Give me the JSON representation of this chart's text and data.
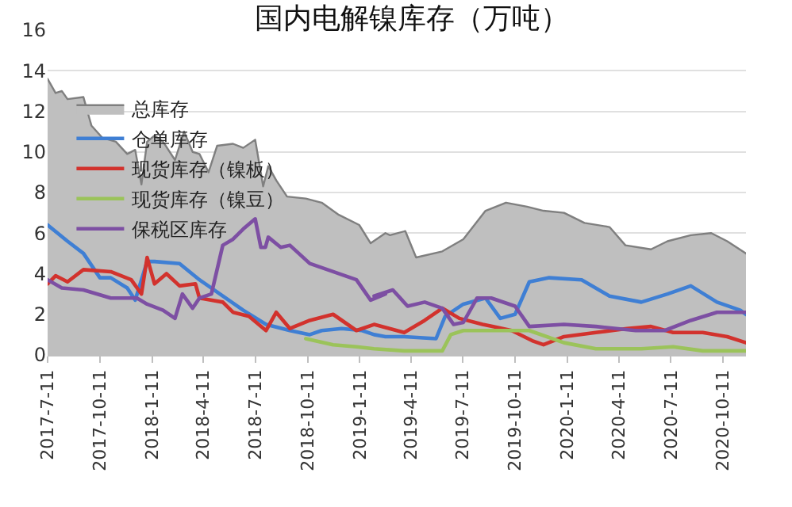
{
  "chart_data": {
    "type": "line",
    "title": "国内电解镍库存（万吨）",
    "xlim": [
      "2017-07-11",
      "2020-11-20"
    ],
    "xticks": [
      {
        "value": "2017-07-11",
        "label": "2017-7-11"
      },
      {
        "value": "2017-10-11",
        "label": "2017-10-11"
      },
      {
        "value": "2018-01-11",
        "label": "2018-1-11"
      },
      {
        "value": "2018-04-11",
        "label": "2018-4-11"
      },
      {
        "value": "2018-07-11",
        "label": "2018-7-11"
      },
      {
        "value": "2018-10-11",
        "label": "2018-10-11"
      },
      {
        "value": "2019-01-11",
        "label": "2019-1-11"
      },
      {
        "value": "2019-04-11",
        "label": "2019-4-11"
      },
      {
        "value": "2019-07-11",
        "label": "2019-7-11"
      },
      {
        "value": "2019-10-11",
        "label": "2019-10-11"
      },
      {
        "value": "2020-01-11",
        "label": "2020-1-11"
      },
      {
        "value": "2020-04-11",
        "label": "2020-4-11"
      },
      {
        "value": "2020-07-11",
        "label": "2020-7-11"
      },
      {
        "value": "2020-10-11",
        "label": "2020-10-11"
      }
    ],
    "ylim": [
      0,
      16
    ],
    "yticks": [
      0,
      2,
      4,
      6,
      8,
      10,
      12,
      14,
      16
    ],
    "grid": "y",
    "legend": "top left",
    "series": [
      {
        "name": "总库存",
        "type": "area",
        "color": "#bfbfbf",
        "x": [
          "2017-07-11",
          "2017-07-25",
          "2017-08-05",
          "2017-08-15",
          "2017-09-12",
          "2017-09-26",
          "2017-10-15",
          "2017-11-08",
          "2017-11-28",
          "2017-12-12",
          "2017-12-23",
          "2018-01-02",
          "2018-01-15",
          "2018-01-30",
          "2018-02-20",
          "2018-03-08",
          "2018-03-23",
          "2018-04-04",
          "2018-04-20",
          "2018-05-05",
          "2018-06-02",
          "2018-06-20",
          "2018-07-11",
          "2018-07-25",
          "2018-08-03",
          "2018-08-17",
          "2018-09-05",
          "2018-10-08",
          "2018-11-05",
          "2018-12-05",
          "2019-01-10",
          "2019-01-30",
          "2019-02-25",
          "2019-03-05",
          "2019-04-01",
          "2019-04-20",
          "2019-06-05",
          "2019-07-12",
          "2019-08-20",
          "2019-09-25",
          "2019-11-01",
          "2019-11-30",
          "2020-01-05",
          "2020-02-10",
          "2020-03-25",
          "2020-04-22",
          "2020-06-06",
          "2020-07-05",
          "2020-08-15",
          "2020-09-20",
          "2020-10-18",
          "2020-11-20"
        ],
        "values": [
          13.6,
          12.9,
          13.0,
          12.6,
          12.7,
          11.3,
          10.7,
          10.5,
          9.9,
          10.1,
          8.4,
          10.5,
          10.8,
          10.5,
          9.6,
          11.0,
          10.0,
          9.9,
          9.0,
          10.3,
          10.4,
          10.2,
          10.6,
          8.3,
          9.3,
          8.6,
          7.8,
          7.7,
          7.5,
          6.9,
          6.4,
          5.5,
          6.0,
          5.9,
          6.1,
          4.8,
          5.1,
          5.7,
          7.1,
          7.5,
          7.3,
          7.1,
          7.0,
          6.5,
          6.3,
          5.4,
          5.2,
          5.6,
          5.9,
          6.0,
          5.6,
          5.0
        ]
      },
      {
        "name": "仓单库存",
        "color": "#3f7fd4",
        "x": [
          "2017-07-11",
          "2017-08-15",
          "2017-09-12",
          "2017-10-11",
          "2017-10-30",
          "2017-11-28",
          "2017-12-12",
          "2018-01-02",
          "2018-01-15",
          "2018-02-28",
          "2018-04-04",
          "2018-05-15",
          "2018-06-20",
          "2018-07-30",
          "2018-09-10",
          "2018-10-15",
          "2018-11-05",
          "2018-12-10",
          "2019-01-15",
          "2019-02-05",
          "2019-02-25",
          "2019-03-30",
          "2019-05-25",
          "2019-06-10",
          "2019-07-12",
          "2019-08-20",
          "2019-09-15",
          "2019-10-11",
          "2019-11-05",
          "2019-12-10",
          "2020-02-05",
          "2020-03-25",
          "2020-05-20",
          "2020-07-05",
          "2020-08-15",
          "2020-09-30",
          "2020-11-10",
          "2020-11-20"
        ],
        "values": [
          6.4,
          5.6,
          5.0,
          3.8,
          3.8,
          3.3,
          2.7,
          4.6,
          4.6,
          4.5,
          3.7,
          2.9,
          2.2,
          1.5,
          1.2,
          1.0,
          1.2,
          1.3,
          1.2,
          1.0,
          0.9,
          0.9,
          0.8,
          1.9,
          2.5,
          2.8,
          1.8,
          2.0,
          3.6,
          3.8,
          3.7,
          2.9,
          2.6,
          3.0,
          3.4,
          2.6,
          2.2,
          2.0
        ]
      },
      {
        "name": "现货库存（镍板）",
        "color": "#d2322d",
        "x": [
          "2017-07-11",
          "2017-07-25",
          "2017-08-15",
          "2017-09-12",
          "2017-10-30",
          "2017-12-05",
          "2017-12-23",
          "2018-01-02",
          "2018-01-15",
          "2018-02-05",
          "2018-02-28",
          "2018-03-28",
          "2018-04-04",
          "2018-05-15",
          "2018-06-02",
          "2018-06-30",
          "2018-07-30",
          "2018-08-17",
          "2018-09-10",
          "2018-10-15",
          "2018-11-25",
          "2019-01-05",
          "2019-02-05",
          "2019-03-30",
          "2019-05-05",
          "2019-06-05",
          "2019-07-05",
          "2019-08-15",
          "2019-09-01",
          "2019-10-05",
          "2019-11-10",
          "2019-11-30",
          "2020-01-05",
          "2020-03-01",
          "2020-04-25",
          "2020-06-06",
          "2020-07-15",
          "2020-09-05",
          "2020-10-18",
          "2020-11-20"
        ],
        "values": [
          3.5,
          3.9,
          3.6,
          4.2,
          4.1,
          3.7,
          3.0,
          4.8,
          3.5,
          4.0,
          3.4,
          3.5,
          2.8,
          2.6,
          2.1,
          1.9,
          1.2,
          2.1,
          1.3,
          1.7,
          2.0,
          1.2,
          1.5,
          1.1,
          1.7,
          2.3,
          1.8,
          1.5,
          1.4,
          1.2,
          0.7,
          0.5,
          0.9,
          1.1,
          1.3,
          1.4,
          1.1,
          1.1,
          0.9,
          0.6
        ]
      },
      {
        "name": "现货库存（镍豆）",
        "color": "#9bc35a",
        "x": [
          "2018-10-08",
          "2018-11-25",
          "2019-01-05",
          "2019-02-05",
          "2019-03-30",
          "2019-06-05",
          "2019-06-20",
          "2019-07-12",
          "2019-09-25",
          "2019-11-05",
          "2020-01-05",
          "2020-03-01",
          "2020-05-20",
          "2020-07-15",
          "2020-09-05",
          "2020-11-20"
        ],
        "values": [
          0.8,
          0.5,
          0.4,
          0.3,
          0.2,
          0.2,
          1.0,
          1.2,
          1.2,
          1.2,
          0.6,
          0.3,
          0.3,
          0.4,
          0.2,
          0.2
        ]
      },
      {
        "name": "保税区库存",
        "color": "#7d4fa3",
        "x": [
          "2017-07-11",
          "2017-08-05",
          "2017-09-12",
          "2017-10-30",
          "2017-12-15",
          "2018-01-02",
          "2018-01-30",
          "2018-02-20",
          "2018-03-05",
          "2018-03-23",
          "2018-04-04",
          "2018-04-25",
          "2018-05-15",
          "2018-06-02",
          "2018-06-20",
          "2018-07-11",
          "2018-07-21",
          "2018-07-29",
          "2018-08-03",
          "2018-08-25",
          "2018-09-10",
          "2018-10-15",
          "2018-11-25",
          "2019-01-05",
          "2019-01-30",
          "2019-02-25",
          "2019-02-05",
          "2019-03-10",
          "2019-04-05",
          "2019-05-05",
          "2019-06-05",
          "2019-06-25",
          "2019-07-12",
          "2019-08-05",
          "2019-08-30",
          "2019-10-11",
          "2019-11-05",
          "2020-01-05",
          "2020-03-01",
          "2020-05-10",
          "2020-06-30",
          "2020-08-15",
          "2020-09-30",
          "2020-11-20"
        ],
        "values": [
          3.7,
          3.3,
          3.2,
          2.8,
          2.8,
          2.5,
          2.2,
          1.8,
          3.0,
          2.3,
          2.8,
          3.0,
          5.4,
          5.7,
          6.2,
          6.7,
          5.3,
          5.3,
          5.8,
          5.3,
          5.4,
          4.5,
          4.1,
          3.7,
          2.7,
          3.0,
          2.9,
          3.2,
          2.4,
          2.6,
          2.3,
          1.5,
          1.6,
          2.8,
          2.8,
          2.4,
          1.4,
          1.5,
          1.4,
          1.2,
          1.2,
          1.7,
          2.1,
          2.1
        ]
      }
    ]
  }
}
